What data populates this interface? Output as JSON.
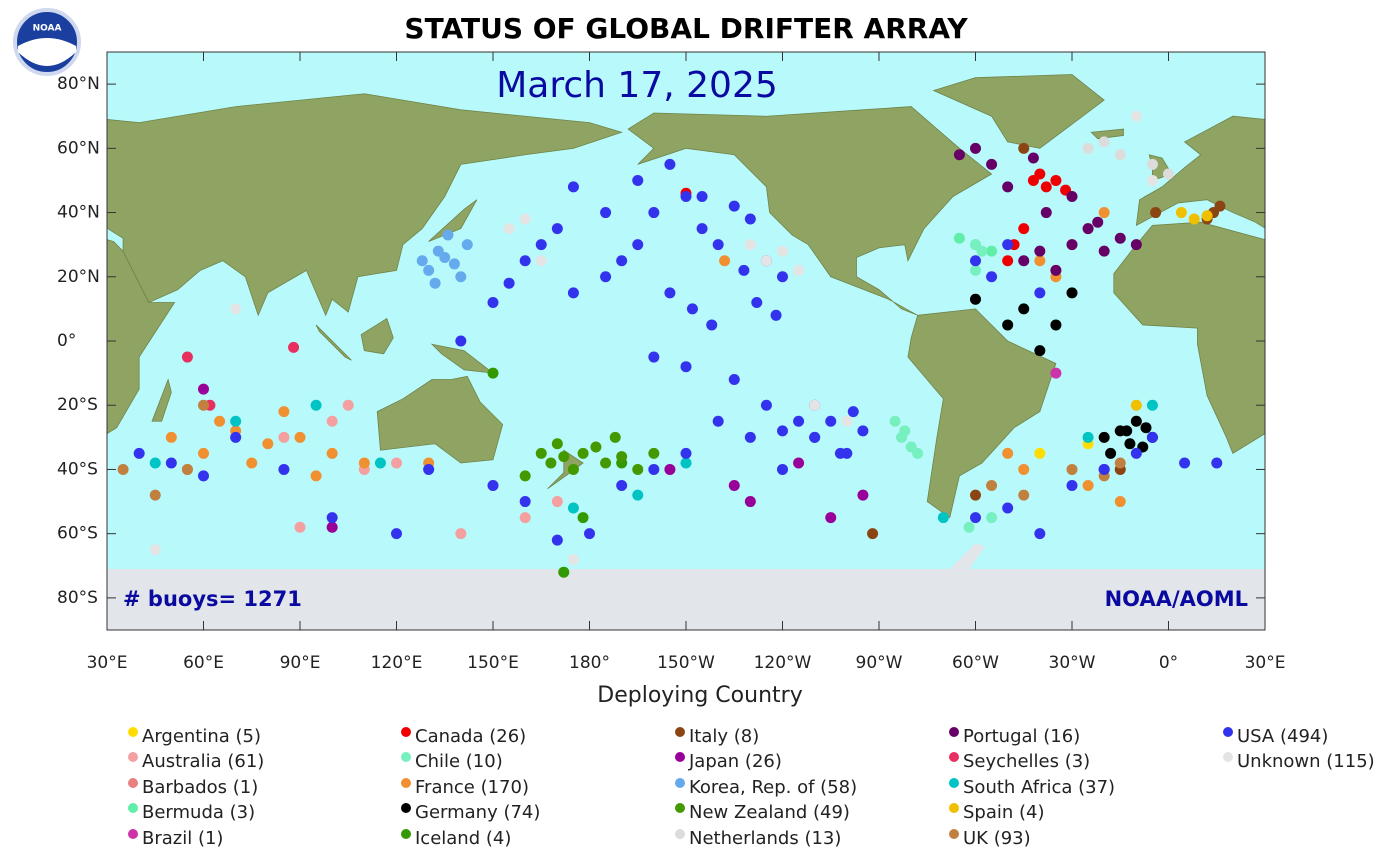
{
  "chart_data": {
    "type": "scatter",
    "title": "STATUS OF GLOBAL DRIFTER ARRAY",
    "subtitle": "March 17, 2025",
    "logo_text": "NOAA",
    "annotations": [
      "# buoys= 1271",
      "NOAA/AOML"
    ],
    "xlabel": "Deploying Country",
    "xlim": [
      30,
      390
    ],
    "ylim": [
      -90,
      90
    ],
    "xticks": [
      {
        "value": 30,
        "label": "30°E"
      },
      {
        "value": 60,
        "label": "60°E"
      },
      {
        "value": 90,
        "label": "90°E"
      },
      {
        "value": 120,
        "label": "120°E"
      },
      {
        "value": 150,
        "label": "150°E"
      },
      {
        "value": 180,
        "label": "180°"
      },
      {
        "value": 210,
        "label": "150°W"
      },
      {
        "value": 240,
        "label": "120°W"
      },
      {
        "value": 270,
        "label": "90°W"
      },
      {
        "value": 300,
        "label": "60°W"
      },
      {
        "value": 330,
        "label": "30°W"
      },
      {
        "value": 360,
        "label": "0°"
      },
      {
        "value": 390,
        "label": "30°E"
      }
    ],
    "yticks": [
      {
        "value": 80,
        "label": "80°N"
      },
      {
        "value": 60,
        "label": "60°N"
      },
      {
        "value": 40,
        "label": "40°N"
      },
      {
        "value": 20,
        "label": "20°N"
      },
      {
        "value": 0,
        "label": "0°"
      },
      {
        "value": -20,
        "label": "20°S"
      },
      {
        "value": -40,
        "label": "40°S"
      },
      {
        "value": -60,
        "label": "60°S"
      },
      {
        "value": -80,
        "label": "80°S"
      }
    ],
    "series": [
      {
        "name": "Argentina (5)",
        "color": "#ffdd00",
        "x": [
          335,
          340,
          345,
          320,
          350
        ],
        "y": [
          -32,
          -30,
          -28,
          -35,
          -25
        ]
      },
      {
        "name": "Australia (61)",
        "color": "#f4a0a0",
        "x": [
          100,
          105,
          110,
          90,
          150,
          160,
          170,
          85,
          140,
          120
        ],
        "y": [
          -25,
          -20,
          -40,
          -58,
          -45,
          -55,
          -50,
          -30,
          -60,
          -38
        ]
      },
      {
        "name": "Barbados (1)",
        "color": "#e88080",
        "x": [
          300
        ],
        "y": [
          13
        ]
      },
      {
        "name": "Bermuda (3)",
        "color": "#60eea8",
        "x": [
          295,
          300,
          305
        ],
        "y": [
          32,
          30,
          28
        ]
      },
      {
        "name": "Brazil (1)",
        "color": "#cc33aa",
        "x": [
          325
        ],
        "y": [
          -10
        ]
      },
      {
        "name": "Canada (26)",
        "color": "#ee0000",
        "x": [
          318,
          320,
          322,
          325,
          328,
          315,
          312,
          210,
          310
        ],
        "y": [
          50,
          52,
          48,
          50,
          47,
          35,
          30,
          46,
          25
        ]
      },
      {
        "name": "Chile (10)",
        "color": "#77f0c0",
        "x": [
          275,
          277,
          278,
          280,
          282,
          300,
          302,
          305,
          298,
          300
        ],
        "y": [
          -25,
          -30,
          -28,
          -33,
          -35,
          30,
          28,
          -55,
          -58,
          22
        ]
      },
      {
        "name": "France (170)",
        "color": "#f09030",
        "x": [
          50,
          60,
          70,
          80,
          90,
          100,
          55,
          65,
          75,
          85,
          95,
          110,
          130,
          320,
          325,
          330,
          335,
          340,
          315,
          310,
          345,
          335,
          325,
          222
        ],
        "y": [
          -30,
          -35,
          -28,
          -32,
          -30,
          -35,
          -40,
          -25,
          -38,
          -22,
          -42,
          -38,
          -38,
          25,
          20,
          30,
          35,
          40,
          -40,
          -35,
          -50,
          -45,
          22,
          25
        ]
      },
      {
        "name": "Germany (74)",
        "color": "#000000",
        "x": [
          340,
          345,
          348,
          350,
          352,
          355,
          342,
          300,
          310,
          320,
          325,
          330,
          315,
          347,
          353
        ],
        "y": [
          -30,
          -28,
          -32,
          -25,
          -33,
          -30,
          -35,
          13,
          5,
          -3,
          5,
          15,
          10,
          -28,
          -27
        ]
      },
      {
        "name": "Iceland (4)",
        "color": "#339900",
        "x": [
          150,
          172,
          178,
          190
        ],
        "y": [
          -10,
          -72,
          -55,
          -38
        ]
      },
      {
        "name": "Italy (8)",
        "color": "#8b4513",
        "x": [
          300,
          315,
          356,
          345,
          268,
          372,
          374,
          376
        ],
        "y": [
          -48,
          60,
          40,
          -40,
          -60,
          38,
          40,
          42
        ]
      },
      {
        "name": "Japan (26)",
        "color": "#990099",
        "x": [
          60,
          205,
          225,
          230,
          245,
          255,
          265,
          340,
          100
        ],
        "y": [
          -15,
          -40,
          -45,
          -50,
          -38,
          -55,
          -48,
          -40,
          -58
        ]
      },
      {
        "name": "Korea, Rep. of (58)",
        "color": "#66aaee",
        "x": [
          128,
          130,
          133,
          135,
          138,
          140,
          142,
          132,
          136
        ],
        "y": [
          25,
          22,
          28,
          26,
          24,
          20,
          30,
          18,
          33
        ]
      },
      {
        "name": "New Zealand (49)",
        "color": "#449900",
        "x": [
          165,
          168,
          170,
          172,
          175,
          178,
          182,
          185,
          188,
          190,
          195,
          200,
          160
        ],
        "y": [
          -35,
          -38,
          -32,
          -36,
          -40,
          -35,
          -33,
          -38,
          -30,
          -36,
          -40,
          -35,
          -42
        ]
      },
      {
        "name": "Netherlands (13)",
        "color": "#dcdcdc",
        "x": [
          355,
          345,
          335,
          360,
          340
        ],
        "y": [
          55,
          58,
          60,
          52,
          62
        ]
      },
      {
        "name": "Portugal (16)",
        "color": "#660066",
        "x": [
          300,
          305,
          310,
          315,
          320,
          325,
          330,
          335,
          340,
          345,
          350,
          295,
          318,
          322,
          330,
          338
        ],
        "y": [
          60,
          55,
          48,
          25,
          28,
          22,
          30,
          35,
          28,
          32,
          30,
          58,
          57,
          40,
          45,
          37
        ]
      },
      {
        "name": "Seychelles (3)",
        "color": "#e83060",
        "x": [
          55,
          88,
          62
        ],
        "y": [
          -5,
          -2,
          -20
        ]
      },
      {
        "name": "South Africa (37)",
        "color": "#00c4c4",
        "x": [
          45,
          70,
          95,
          115,
          175,
          195,
          210,
          355,
          335,
          290
        ],
        "y": [
          -38,
          -25,
          -20,
          -38,
          -52,
          -48,
          -38,
          -20,
          -30,
          -55
        ]
      },
      {
        "name": "Spain (4)",
        "color": "#f0c000",
        "x": [
          364,
          368,
          372,
          350
        ],
        "y": [
          40,
          38,
          39,
          -20
        ]
      },
      {
        "name": "UK (93)",
        "color": "#c08040",
        "x": [
          45,
          55,
          60,
          35,
          330,
          340,
          345,
          315,
          305
        ],
        "y": [
          -48,
          -40,
          -20,
          -40,
          -40,
          -42,
          -38,
          -48,
          -45
        ]
      },
      {
        "name": "USA (494)",
        "color": "#3333ee",
        "x": [
          200,
          210,
          215,
          220,
          225,
          230,
          235,
          240,
          205,
          212,
          218,
          228,
          232,
          238,
          245,
          250,
          190,
          195,
          185,
          175,
          170,
          165,
          160,
          155,
          150,
          140,
          200,
          210,
          225,
          235,
          240,
          250,
          255,
          260,
          265,
          262,
          258,
          240,
          230,
          220,
          210,
          200,
          190,
          180,
          170,
          160,
          150,
          130,
          120,
          100,
          85,
          70,
          60,
          50,
          40,
          300,
          305,
          310,
          320,
          330,
          340,
          350,
          355,
          365,
          375,
          320,
          300,
          310,
          195,
          205,
          215,
          185,
          175,
          250
        ],
        "y": [
          40,
          45,
          35,
          30,
          42,
          38,
          25,
          20,
          15,
          10,
          5,
          22,
          12,
          8,
          -25,
          -30,
          25,
          30,
          20,
          15,
          35,
          30,
          25,
          18,
          12,
          0,
          -5,
          -8,
          -12,
          -20,
          -28,
          -30,
          -25,
          -35,
          -28,
          -22,
          -35,
          -40,
          -30,
          -25,
          -35,
          -40,
          -45,
          -60,
          -62,
          -50,
          -45,
          -40,
          -60,
          -55,
          -40,
          -30,
          -42,
          -38,
          -35,
          25,
          20,
          30,
          15,
          -45,
          -40,
          -35,
          -30,
          -38,
          -38,
          -60,
          -55,
          -52,
          50,
          55,
          45,
          40,
          48,
          -20
        ]
      },
      {
        "name": "Unknown (115)",
        "color": "#e4e4e4",
        "x": [
          235,
          240,
          245,
          230,
          155,
          160,
          165,
          175,
          250,
          260,
          45,
          70,
          355,
          350
        ],
        "y": [
          25,
          28,
          22,
          30,
          35,
          38,
          25,
          -68,
          -20,
          -25,
          -65,
          10,
          50,
          70
        ]
      }
    ]
  }
}
